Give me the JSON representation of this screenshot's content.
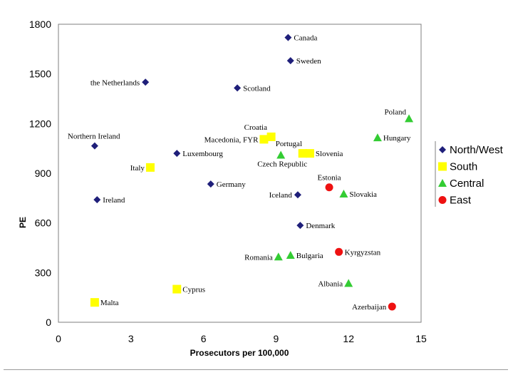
{
  "chart_data": {
    "type": "scatter",
    "title": "",
    "xlabel": "Prosecutors per 100,000",
    "ylabel": "PE",
    "xlim": [
      0,
      15
    ],
    "ylim": [
      0,
      1800
    ],
    "xticks": [
      "0",
      "3",
      "6",
      "9",
      "12",
      "15"
    ],
    "yticks": [
      "0",
      "300",
      "600",
      "900",
      "1200",
      "1500",
      "1800"
    ],
    "legend_position": "right",
    "series": [
      {
        "name": "North/West",
        "marker": "diamond",
        "color": "#1f1f7a",
        "points": [
          {
            "label": "Canada",
            "x": 9.5,
            "y": 1720,
            "label_side": "right"
          },
          {
            "label": "Sweden",
            "x": 9.6,
            "y": 1580,
            "label_side": "right"
          },
          {
            "label": "the Netherlands",
            "x": 3.6,
            "y": 1450,
            "label_side": "left"
          },
          {
            "label": "Scotland",
            "x": 7.4,
            "y": 1415,
            "label_side": "right"
          },
          {
            "label": "Northern Ireland",
            "x": 1.5,
            "y": 1065,
            "label_side": "right-above"
          },
          {
            "label": "Luxembourg",
            "x": 4.9,
            "y": 1020,
            "label_side": "right"
          },
          {
            "label": "Germany",
            "x": 6.3,
            "y": 835,
            "label_side": "right"
          },
          {
            "label": "Iceland",
            "x": 9.9,
            "y": 770,
            "label_side": "left"
          },
          {
            "label": "Ireland",
            "x": 1.6,
            "y": 740,
            "label_side": "right"
          },
          {
            "label": "Denmark",
            "x": 10.0,
            "y": 585,
            "label_side": "right"
          }
        ]
      },
      {
        "name": "South",
        "marker": "square",
        "color": "#ffff00",
        "points": [
          {
            "label": "Croatia",
            "x": 8.8,
            "y": 1120,
            "label_side": "right-above"
          },
          {
            "label": "Macedonia, FYR",
            "x": 8.5,
            "y": 1105,
            "label_side": "left"
          },
          {
            "label": "Portugal",
            "x": 10.1,
            "y": 1020,
            "label_side": "right-above"
          },
          {
            "label": "Slovenia",
            "x": 10.4,
            "y": 1020,
            "label_side": "right"
          },
          {
            "label": "Italy",
            "x": 3.8,
            "y": 935,
            "label_side": "left"
          },
          {
            "label": "Cyprus",
            "x": 4.9,
            "y": 200,
            "label_side": "right"
          },
          {
            "label": "Malta",
            "x": 1.5,
            "y": 120,
            "label_side": "right"
          }
        ]
      },
      {
        "name": "Central",
        "marker": "triangle",
        "color": "#33cc33",
        "points": [
          {
            "label": "Poland",
            "x": 14.5,
            "y": 1230,
            "label_side": "left-above"
          },
          {
            "label": "Hungary",
            "x": 13.2,
            "y": 1115,
            "label_side": "right"
          },
          {
            "label": "Czech Republic",
            "x": 9.2,
            "y": 1010,
            "label_side": "below"
          },
          {
            "label": "Slovakia",
            "x": 11.8,
            "y": 775,
            "label_side": "right"
          },
          {
            "label": "Bulgaria",
            "x": 9.6,
            "y": 405,
            "label_side": "right"
          },
          {
            "label": "Romania",
            "x": 9.1,
            "y": 395,
            "label_side": "left"
          },
          {
            "label": "Albania",
            "x": 12.0,
            "y": 235,
            "label_side": "left"
          }
        ]
      },
      {
        "name": "East",
        "marker": "circle",
        "color": "#ee1111",
        "points": [
          {
            "label": "Estonia",
            "x": 11.2,
            "y": 815,
            "label_side": "above"
          },
          {
            "label": "Kyrgyzstan",
            "x": 11.6,
            "y": 425,
            "label_side": "right"
          },
          {
            "label": "Azerbaijan",
            "x": 13.8,
            "y": 95,
            "label_side": "left"
          }
        ]
      }
    ]
  }
}
